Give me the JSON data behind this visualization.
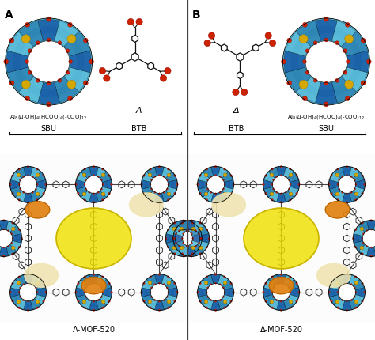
{
  "panel_A_label": "A",
  "panel_B_label": "B",
  "label_A_mof": "Λ-MOF-520",
  "label_B_mof": "Δ-MOF-520",
  "label_SBU": "SBU",
  "label_BTB": "BTB",
  "label_lambda": "Λ",
  "label_delta": "Δ",
  "bg_color": "#f0f0f0",
  "fig_width": 4.74,
  "fig_height": 4.3,
  "dpi": 100,
  "sbu_light": "#5bbcd9",
  "sbu_mid": "#2e86b5",
  "sbu_dark": "#1a5fa8",
  "sbu_yellow": "#d4a800",
  "sbu_red": "#cc2200",
  "sbu_white": "#e8f4fa",
  "btb_black": "#111111",
  "btb_red": "#cc2200",
  "void_yellow": "#f0e000",
  "void_yellow_edge": "#c8b400",
  "void_orange": "#e08010",
  "void_cream": "#f0e4b0",
  "divider_color": "#444444"
}
